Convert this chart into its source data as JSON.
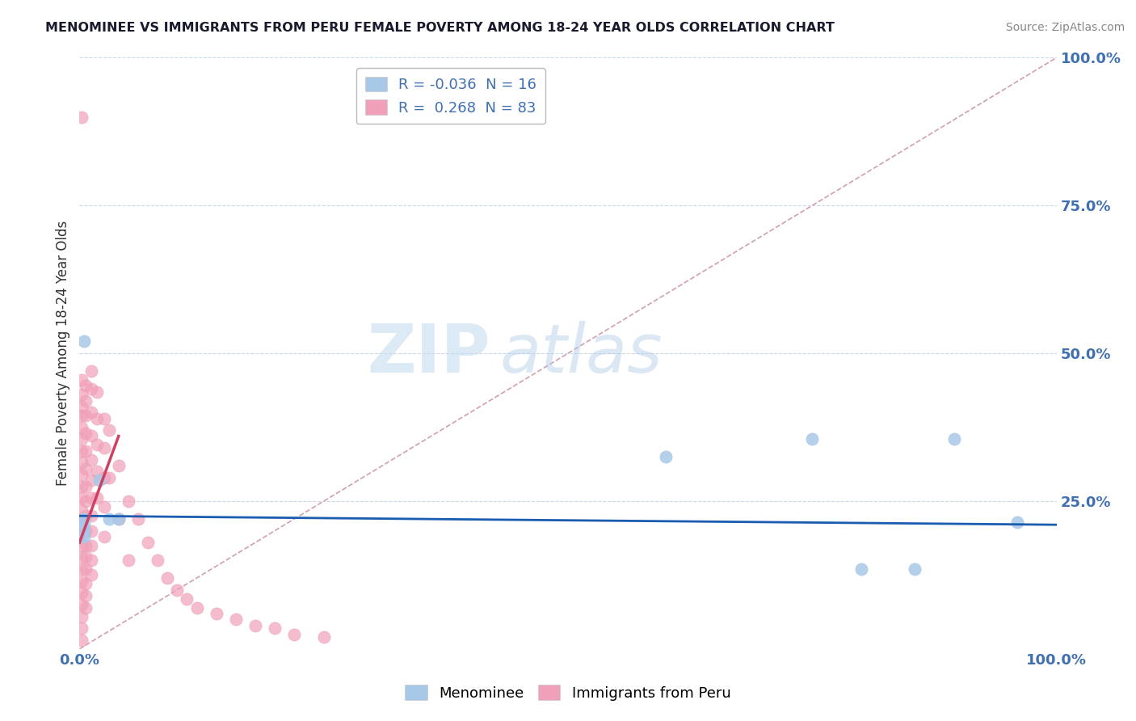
{
  "title": "MENOMINEE VS IMMIGRANTS FROM PERU FEMALE POVERTY AMONG 18-24 YEAR OLDS CORRELATION CHART",
  "source": "Source: ZipAtlas.com",
  "ylabel": "Female Poverty Among 18-24 Year Olds",
  "xlim": [
    0,
    1
  ],
  "ylim": [
    0,
    1
  ],
  "y_tick_positions": [
    0.25,
    0.5,
    0.75,
    1.0
  ],
  "y_tick_labels": [
    "25.0%",
    "50.0%",
    "75.0%",
    "100.0%"
  ],
  "watermark_zip": "ZIP",
  "watermark_atlas": "atlas",
  "menominee_R": "-0.036",
  "menominee_N": "16",
  "peru_R": "0.268",
  "peru_N": "83",
  "menominee_color": "#a8c8e8",
  "peru_color": "#f0a0b8",
  "menominee_line_color": "#1a5cb0",
  "peru_line_color": "#d04060",
  "diagonal_color": "#d0a0b0",
  "background_color": "#ffffff",
  "grid_color": "#c8d8e8",
  "tick_color": "#4070b0",
  "menominee_points": [
    [
      0.005,
      0.52
    ],
    [
      0.005,
      0.22
    ],
    [
      0.005,
      0.21
    ],
    [
      0.005,
      0.2
    ],
    [
      0.005,
      0.19
    ],
    [
      0.02,
      0.285
    ],
    [
      0.03,
      0.22
    ],
    [
      0.04,
      0.22
    ],
    [
      0.6,
      0.325
    ],
    [
      0.75,
      0.355
    ],
    [
      0.8,
      0.135
    ],
    [
      0.855,
      0.135
    ],
    [
      0.895,
      0.355
    ],
    [
      0.96,
      0.215
    ]
  ],
  "peru_points": [
    [
      0.002,
      0.9
    ],
    [
      0.002,
      0.455
    ],
    [
      0.002,
      0.43
    ],
    [
      0.002,
      0.41
    ],
    [
      0.002,
      0.395
    ],
    [
      0.002,
      0.375
    ],
    [
      0.002,
      0.355
    ],
    [
      0.002,
      0.335
    ],
    [
      0.002,
      0.315
    ],
    [
      0.002,
      0.295
    ],
    [
      0.002,
      0.275
    ],
    [
      0.002,
      0.255
    ],
    [
      0.002,
      0.235
    ],
    [
      0.002,
      0.215
    ],
    [
      0.002,
      0.195
    ],
    [
      0.002,
      0.175
    ],
    [
      0.002,
      0.155
    ],
    [
      0.002,
      0.135
    ],
    [
      0.002,
      0.115
    ],
    [
      0.002,
      0.095
    ],
    [
      0.002,
      0.075
    ],
    [
      0.002,
      0.055
    ],
    [
      0.002,
      0.035
    ],
    [
      0.002,
      0.015
    ],
    [
      0.006,
      0.445
    ],
    [
      0.006,
      0.42
    ],
    [
      0.006,
      0.395
    ],
    [
      0.006,
      0.365
    ],
    [
      0.006,
      0.335
    ],
    [
      0.006,
      0.305
    ],
    [
      0.006,
      0.275
    ],
    [
      0.006,
      0.25
    ],
    [
      0.006,
      0.225
    ],
    [
      0.006,
      0.2
    ],
    [
      0.006,
      0.175
    ],
    [
      0.006,
      0.155
    ],
    [
      0.006,
      0.135
    ],
    [
      0.006,
      0.11
    ],
    [
      0.006,
      0.09
    ],
    [
      0.006,
      0.07
    ],
    [
      0.012,
      0.47
    ],
    [
      0.012,
      0.44
    ],
    [
      0.012,
      0.4
    ],
    [
      0.012,
      0.36
    ],
    [
      0.012,
      0.32
    ],
    [
      0.012,
      0.285
    ],
    [
      0.012,
      0.255
    ],
    [
      0.012,
      0.225
    ],
    [
      0.012,
      0.2
    ],
    [
      0.012,
      0.175
    ],
    [
      0.012,
      0.15
    ],
    [
      0.012,
      0.125
    ],
    [
      0.018,
      0.435
    ],
    [
      0.018,
      0.39
    ],
    [
      0.018,
      0.345
    ],
    [
      0.018,
      0.3
    ],
    [
      0.018,
      0.255
    ],
    [
      0.025,
      0.39
    ],
    [
      0.025,
      0.34
    ],
    [
      0.025,
      0.29
    ],
    [
      0.025,
      0.24
    ],
    [
      0.025,
      0.19
    ],
    [
      0.03,
      0.37
    ],
    [
      0.03,
      0.29
    ],
    [
      0.04,
      0.31
    ],
    [
      0.04,
      0.22
    ],
    [
      0.05,
      0.25
    ],
    [
      0.05,
      0.15
    ],
    [
      0.06,
      0.22
    ],
    [
      0.07,
      0.18
    ],
    [
      0.08,
      0.15
    ],
    [
      0.09,
      0.12
    ],
    [
      0.1,
      0.1
    ],
    [
      0.11,
      0.085
    ],
    [
      0.12,
      0.07
    ],
    [
      0.14,
      0.06
    ],
    [
      0.16,
      0.05
    ],
    [
      0.18,
      0.04
    ],
    [
      0.2,
      0.035
    ],
    [
      0.22,
      0.025
    ],
    [
      0.25,
      0.02
    ]
  ]
}
